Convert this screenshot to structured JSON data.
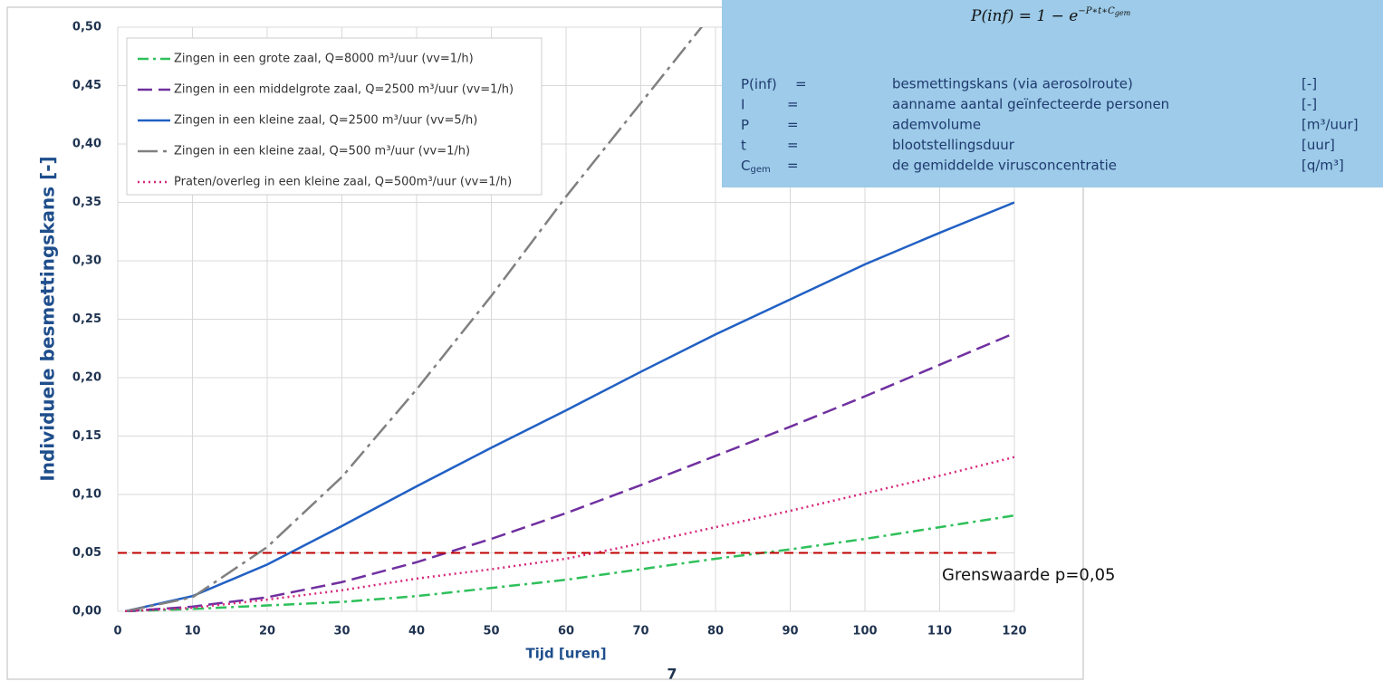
{
  "chart_data": {
    "type": "line",
    "x_label": "Tijd [uren]",
    "y_label": "Individuele besmettingskans [-]",
    "x": [
      1,
      10,
      20,
      30,
      40,
      50,
      60,
      70,
      80,
      90,
      100,
      110,
      120
    ],
    "series": [
      {
        "name": "Zingen in een grote zaal, Q=8000 m³/uur (vv=1/h)",
        "color": "#2ec05a",
        "line_style": "dashdot",
        "values": [
          0,
          0.002,
          0.005,
          0.008,
          0.013,
          0.02,
          0.027,
          0.036,
          0.045,
          0.053,
          0.062,
          0.072,
          0.082
        ]
      },
      {
        "name": "Zingen in een middelgrote zaal, Q=2500 m³/uur (vv=1/h)",
        "color": "#7030a0",
        "line_style": "dashed",
        "values": [
          0,
          0.004,
          0.012,
          0.025,
          0.042,
          0.062,
          0.084,
          0.108,
          0.133,
          0.158,
          0.184,
          0.211,
          0.238
        ]
      },
      {
        "name": "Zingen in een kleine zaal, Q=2500 m³/uur (vv=5/h)",
        "color": "#2160c4",
        "line_style": "solid",
        "values": [
          0,
          0.013,
          0.04,
          0.073,
          0.107,
          0.14,
          0.172,
          0.205,
          0.237,
          0.267,
          0.297,
          0.324,
          0.35
        ]
      },
      {
        "name": "Zingen in een kleine zaal, Q=500 m³/uur (vv=1/h)",
        "color": "#808080",
        "line_style": "longdashdot",
        "values": [
          0,
          0.012,
          0.055,
          0.115,
          0.19,
          0.27,
          0.355,
          0.435,
          0.515,
          null,
          null,
          null,
          null
        ]
      },
      {
        "name": "Praten/overleg in een kleine zaal, Q=500m³/uur (vv=1/h)",
        "color": "#d6287a",
        "line_style": "dotted",
        "values": [
          0,
          0.003,
          0.01,
          0.018,
          0.028,
          0.036,
          0.045,
          0.058,
          0.072,
          0.086,
          0.101,
          0.116,
          0.132
        ]
      }
    ],
    "threshold": {
      "value": 0.05,
      "x": [
        0,
        118
      ],
      "color": "#c00000",
      "label": "Grenswaarde p=0,05"
    },
    "xlim": [
      0,
      120
    ],
    "xticks": [
      0,
      10,
      20,
      30,
      40,
      50,
      60,
      70,
      80,
      90,
      100,
      110,
      120
    ],
    "ylim": [
      0,
      0.5
    ],
    "yticks": [
      {
        "value": 0,
        "label": "0,00"
      },
      {
        "value": 0.05,
        "label": "0,05"
      },
      {
        "value": 0.1,
        "label": "0,10"
      },
      {
        "value": 0.15,
        "label": "0,15"
      },
      {
        "value": 0.2,
        "label": "0,20"
      },
      {
        "value": 0.25,
        "label": "0,25"
      },
      {
        "value": 0.3,
        "label": "0,30"
      },
      {
        "value": 0.35,
        "label": "0,35"
      },
      {
        "value": 0.4,
        "label": "0,40"
      },
      {
        "value": 0.45,
        "label": "0,45"
      },
      {
        "value": 0.5,
        "label": "0,50"
      }
    ],
    "grid": true,
    "legend": "upper left"
  },
  "page_number": "7",
  "formula_box": {
    "formula": {
      "base": "P(inf) = 1 − e",
      "exponent": "−P∗t∗C",
      "exponent_sub": "gem"
    },
    "rows": [
      {
        "symbol": "P(inf)",
        "eq": "=",
        "description": "besmettingskans (via aerosolroute)",
        "unit": "[-]"
      },
      {
        "symbol": "I",
        "eq": "=",
        "description": "aanname aantal geïnfecteerde personen",
        "unit": "[-]"
      },
      {
        "symbol": "P",
        "eq": "=",
        "description": "ademvolume",
        "unit": "[m³/uur]"
      },
      {
        "symbol": "t",
        "eq": "=",
        "description": "blootstellingsduur",
        "unit": "[uur]"
      },
      {
        "symbol": "C",
        "sub": "gem",
        "eq": "=",
        "description": "de gemiddelde virusconcentratie",
        "unit": "[q/m³]"
      }
    ]
  }
}
